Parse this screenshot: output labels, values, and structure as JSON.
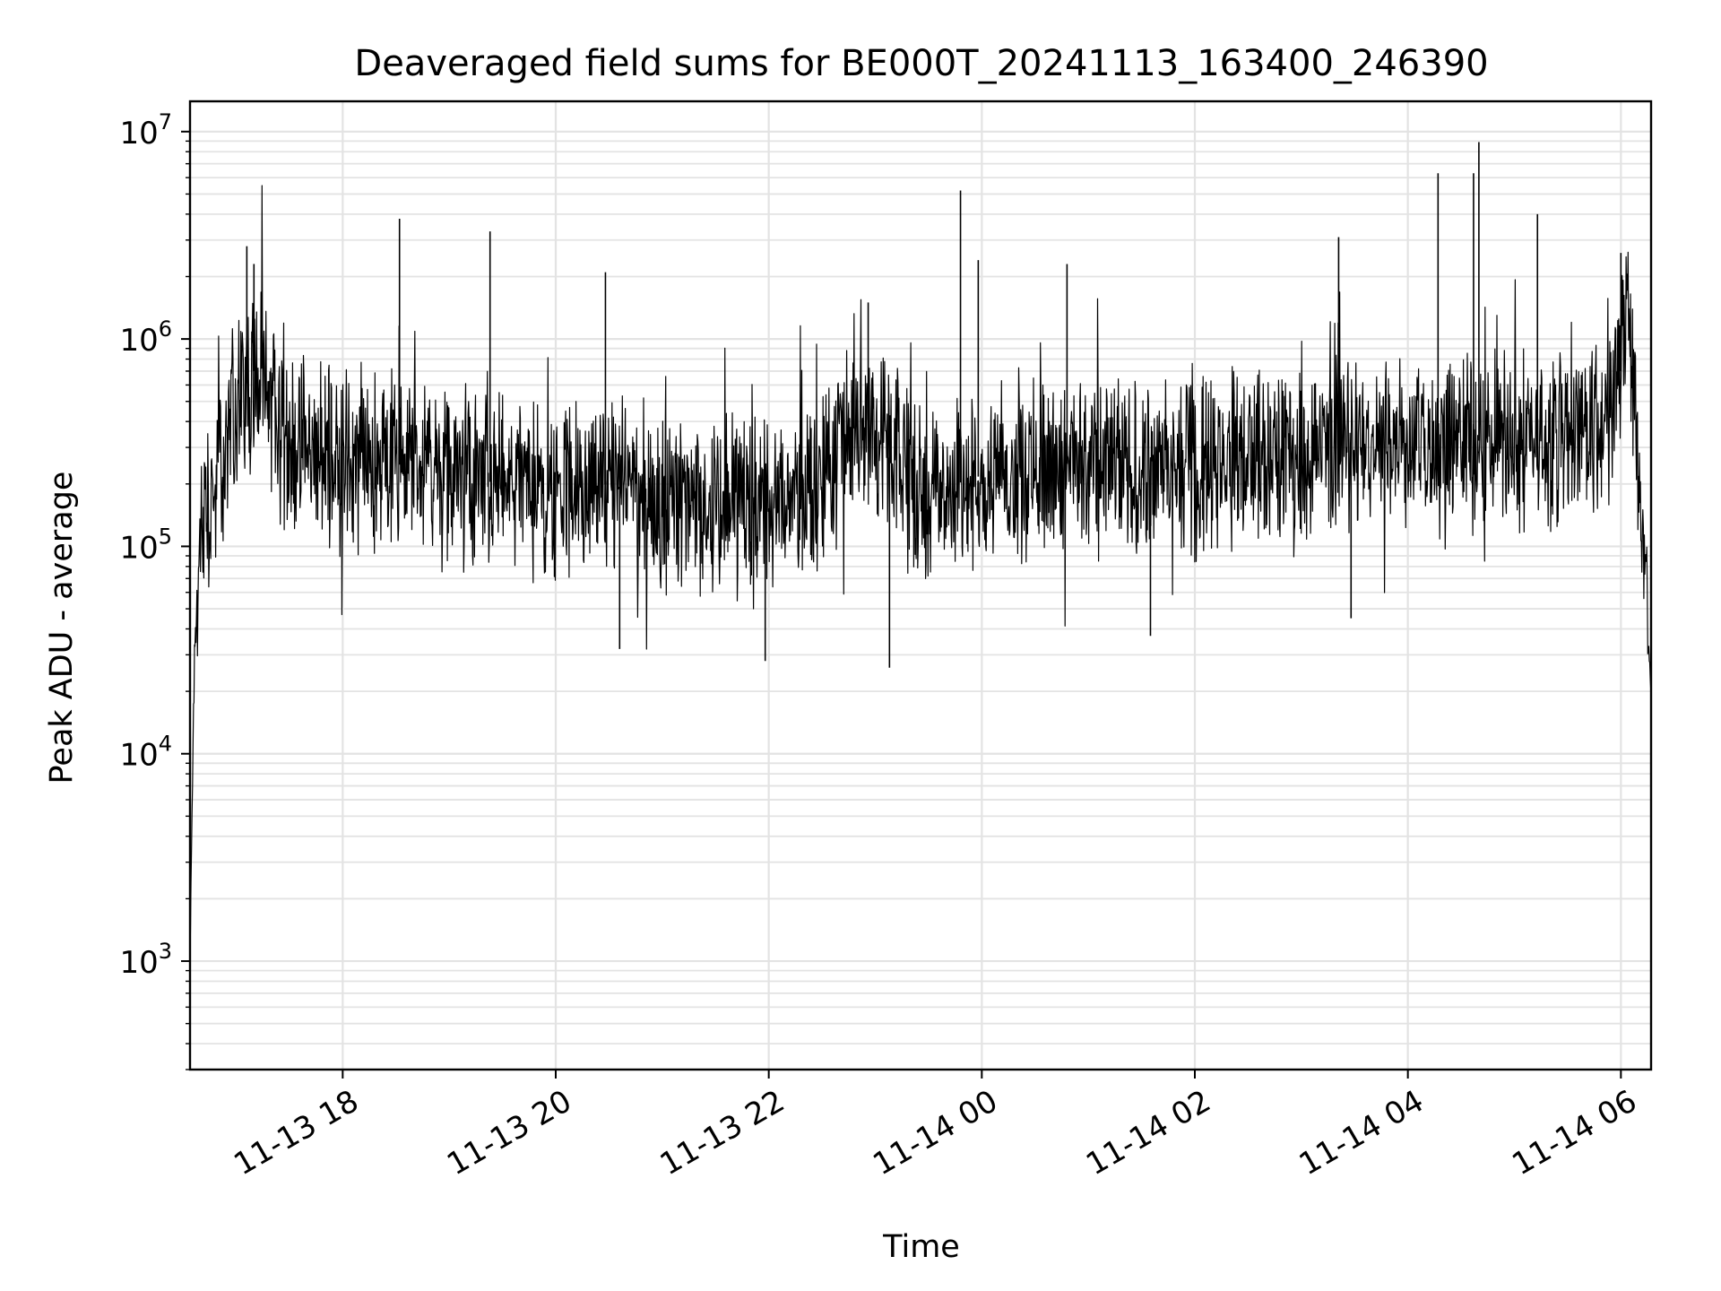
{
  "chart_data": {
    "type": "line",
    "title": "Deaveraged field sums for BE000T_20241113_163400_246390",
    "xlabel": "Time",
    "ylabel": "Peak ADU - average",
    "yscale": "log",
    "ylim": [
      300,
      14000000
    ],
    "xlim": [
      "2024-11-13T16:34",
      "2024-11-14T06:17"
    ],
    "grid": true,
    "line_color": "#000000",
    "x_ticks": [
      {
        "t": "2024-11-13T18:00",
        "label": "11-13 18"
      },
      {
        "t": "2024-11-13T20:00",
        "label": "11-13 20"
      },
      {
        "t": "2024-11-13T22:00",
        "label": "11-13 22"
      },
      {
        "t": "2024-11-14T00:00",
        "label": "11-14 00"
      },
      {
        "t": "2024-11-14T02:00",
        "label": "11-14 02"
      },
      {
        "t": "2024-11-14T04:00",
        "label": "11-14 04"
      },
      {
        "t": "2024-11-14T06:00",
        "label": "11-14 06"
      }
    ],
    "y_ticks": [
      {
        "value": 1000,
        "base": "10",
        "exp": "3"
      },
      {
        "value": 10000,
        "base": "10",
        "exp": "4"
      },
      {
        "value": 100000,
        "base": "10",
        "exp": "5"
      },
      {
        "value": 1000000,
        "base": "10",
        "exp": "6"
      },
      {
        "value": 10000000,
        "base": "10",
        "exp": "7"
      }
    ],
    "series": [
      {
        "values": [
          {
            "t": "2024-11-13T16:34",
            "y": 1000
          },
          {
            "t": "2024-11-13T16:36",
            "y": 20000
          },
          {
            "t": "2024-11-13T16:39",
            "y": 90000
          },
          {
            "t": "2024-11-13T16:44",
            "y": 150000
          },
          {
            "t": "2024-11-13T16:50",
            "y": 200000
          },
          {
            "t": "2024-11-13T17:00",
            "y": 500000
          },
          {
            "t": "2024-11-13T17:10",
            "y": 700000
          },
          {
            "t": "2024-11-13T17:30",
            "y": 300000
          },
          {
            "t": "2024-11-13T18:00",
            "y": 250000
          },
          {
            "t": "2024-11-13T18:30",
            "y": 250000
          },
          {
            "t": "2024-11-13T19:00",
            "y": 220000
          },
          {
            "t": "2024-11-13T19:30",
            "y": 200000
          },
          {
            "t": "2024-11-13T20:00",
            "y": 180000
          },
          {
            "t": "2024-11-13T20:30",
            "y": 200000
          },
          {
            "t": "2024-11-13T21:00",
            "y": 170000
          },
          {
            "t": "2024-11-13T21:30",
            "y": 160000
          },
          {
            "t": "2024-11-13T22:00",
            "y": 150000
          },
          {
            "t": "2024-11-13T22:30",
            "y": 200000
          },
          {
            "t": "2024-11-13T22:50",
            "y": 500000
          },
          {
            "t": "2024-11-13T23:10",
            "y": 250000
          },
          {
            "t": "2024-11-13T23:30",
            "y": 180000
          },
          {
            "t": "2024-11-14T00:00",
            "y": 220000
          },
          {
            "t": "2024-11-14T00:30",
            "y": 250000
          },
          {
            "t": "2024-11-14T01:00",
            "y": 250000
          },
          {
            "t": "2024-11-14T01:30",
            "y": 230000
          },
          {
            "t": "2024-11-14T02:00",
            "y": 250000
          },
          {
            "t": "2024-11-14T02:30",
            "y": 280000
          },
          {
            "t": "2024-11-14T03:00",
            "y": 280000
          },
          {
            "t": "2024-11-14T03:30",
            "y": 300000
          },
          {
            "t": "2024-11-14T04:00",
            "y": 300000
          },
          {
            "t": "2024-11-14T04:30",
            "y": 320000
          },
          {
            "t": "2024-11-14T05:00",
            "y": 330000
          },
          {
            "t": "2024-11-14T05:30",
            "y": 330000
          },
          {
            "t": "2024-11-14T05:50",
            "y": 400000
          },
          {
            "t": "2024-11-14T06:00",
            "y": 700000
          },
          {
            "t": "2024-11-14T06:04",
            "y": 1500000
          },
          {
            "t": "2024-11-14T06:08",
            "y": 600000
          },
          {
            "t": "2024-11-14T06:10",
            "y": 200000
          },
          {
            "t": "2024-11-14T06:14",
            "y": 60000
          },
          {
            "t": "2024-11-14T06:17",
            "y": 20000
          }
        ]
      }
    ],
    "spikes": [
      {
        "t": "2024-11-13T17:06",
        "y": 2800000
      },
      {
        "t": "2024-11-13T17:10",
        "y": 2300000
      },
      {
        "t": "2024-11-13T18:32",
        "y": 3800000
      },
      {
        "t": "2024-11-13T19:23",
        "y": 3300000
      },
      {
        "t": "2024-11-13T20:28",
        "y": 2100000
      },
      {
        "t": "2024-11-13T20:36",
        "y": 32000
      },
      {
        "t": "2024-11-13T21:58",
        "y": 28000
      },
      {
        "t": "2024-11-13T22:56",
        "y": 1500000
      },
      {
        "t": "2024-11-13T23:08",
        "y": 26000
      },
      {
        "t": "2024-11-13T23:48",
        "y": 5200000
      },
      {
        "t": "2024-11-13T23:58",
        "y": 2400000
      },
      {
        "t": "2024-11-14T00:48",
        "y": 2300000
      },
      {
        "t": "2024-11-14T01:35",
        "y": 37000
      },
      {
        "t": "2024-11-14T03:21",
        "y": 3100000
      },
      {
        "t": "2024-11-14T03:28",
        "y": 45000
      },
      {
        "t": "2024-11-14T04:17",
        "y": 6300000
      },
      {
        "t": "2024-11-14T04:37",
        "y": 6300000
      },
      {
        "t": "2024-11-14T04:40",
        "y": 8900000
      },
      {
        "t": "2024-11-14T05:13",
        "y": 4000000
      },
      {
        "t": "2024-11-14T06:00",
        "y": 2600000
      }
    ]
  }
}
